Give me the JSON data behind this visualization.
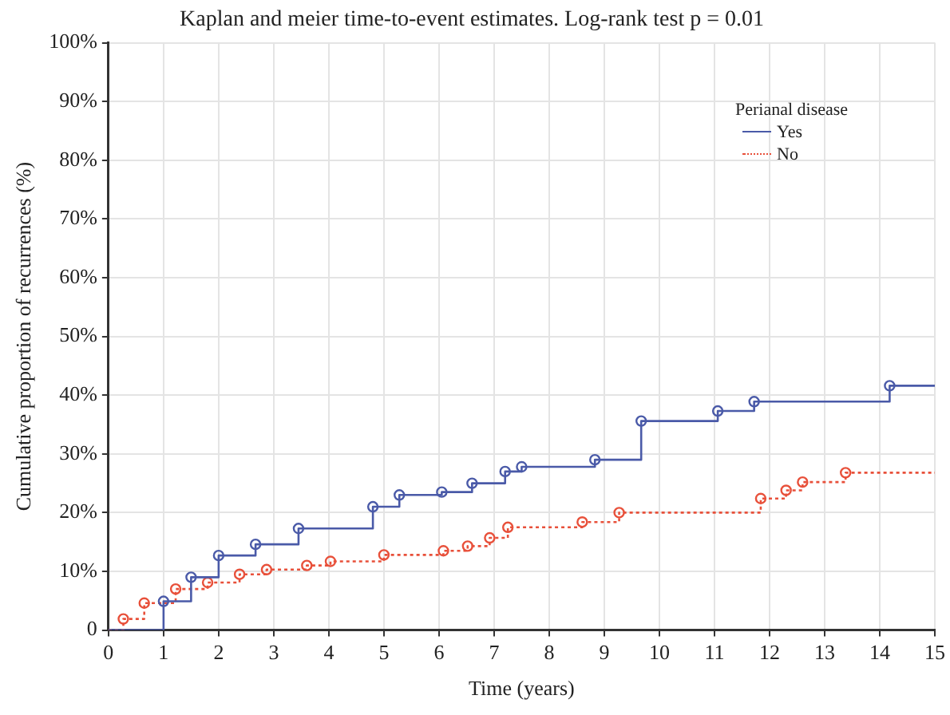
{
  "chart_data": {
    "type": "step",
    "title": "Kaplan and meier time-to-event estimates. Log-rank test p = 0.01",
    "xlabel": "Time (years)",
    "ylabel": "Cumulative proportion of recurrences (%)",
    "legend_title": "Perianal disease",
    "legend": "top right",
    "grid": true,
    "marker": "circle",
    "xlim": [
      0,
      15
    ],
    "xticks": [
      0,
      1,
      2,
      3,
      4,
      5,
      6,
      7,
      8,
      9,
      10,
      11,
      12,
      13,
      14,
      15
    ],
    "ylim": [
      0,
      100
    ],
    "yticks": [
      {
        "value": 0,
        "label": "0"
      },
      {
        "value": 10,
        "label": "10%"
      },
      {
        "value": 20,
        "label": "20%"
      },
      {
        "value": 30,
        "label": "30%"
      },
      {
        "value": 40,
        "label": "40%"
      },
      {
        "value": 50,
        "label": "50%"
      },
      {
        "value": 60,
        "label": "60%"
      },
      {
        "value": 70,
        "label": "70%"
      },
      {
        "value": 80,
        "label": "80%"
      },
      {
        "value": 90,
        "label": "90%"
      },
      {
        "value": 100,
        "label": "100%"
      }
    ],
    "series": [
      {
        "name": "Yes",
        "color": "#4a5aa8",
        "line_style": "solid",
        "x": [
          0,
          0.44,
          1.0,
          1.5,
          2.0,
          2.67,
          3.45,
          4.8,
          5.28,
          6.05,
          6.6,
          7.2,
          7.5,
          8.83,
          9.67,
          11.06,
          11.72,
          14.18,
          15
        ],
        "values": [
          0,
          0,
          4.9,
          9,
          12.7,
          14.6,
          17.3,
          21,
          23,
          23.5,
          25,
          27,
          27.8,
          29,
          35.6,
          37.3,
          38.9,
          41.6,
          41.6
        ]
      },
      {
        "name": "No",
        "color": "#e8503a",
        "line_style": "dotted",
        "x": [
          0,
          0.27,
          0.65,
          1.22,
          1.8,
          2.38,
          2.87,
          3.6,
          4.03,
          5.0,
          6.08,
          6.52,
          6.92,
          7.25,
          8.6,
          9.27,
          11.84,
          12.3,
          12.6,
          13.38,
          15
        ],
        "values": [
          0,
          1.9,
          4.6,
          7,
          8.1,
          9.5,
          10.3,
          11,
          11.7,
          12.8,
          13.5,
          14.3,
          15.7,
          17.5,
          18.4,
          20,
          22.4,
          23.8,
          25.2,
          26.8,
          26.8
        ]
      }
    ]
  }
}
